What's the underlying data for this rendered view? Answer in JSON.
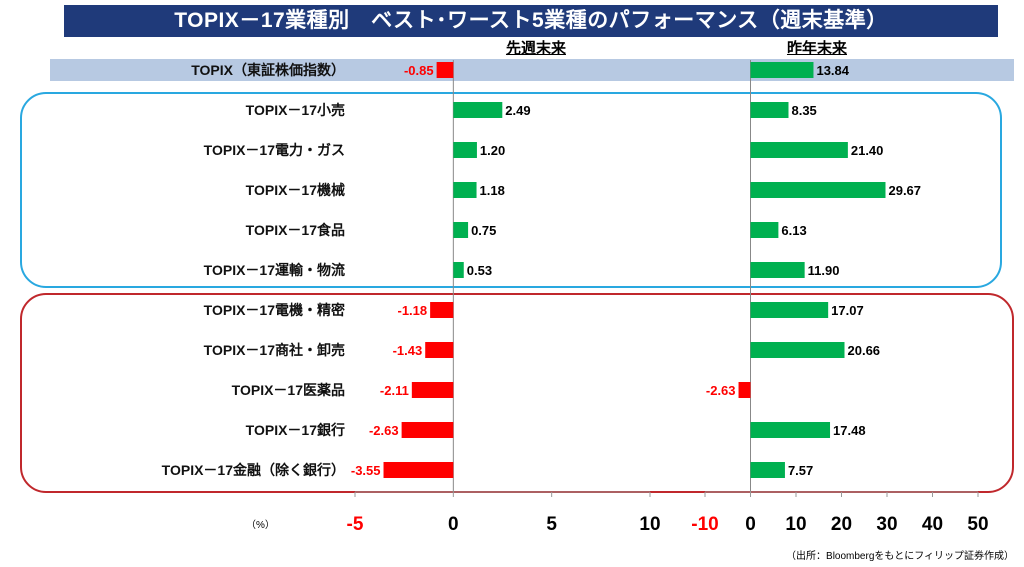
{
  "title": "TOPIX－17業種別　ベスト･ワースト5業種のパフォーマンス（週末基準）",
  "footer": {
    "unit": "（%）",
    "source": "（出所：Bloombergをもとにフィリップ証券作成）"
  },
  "colors": {
    "positive": "#00b050",
    "negative": "#ff0000",
    "title_bg": "#1f3a7a",
    "best_border": "#29a8e0",
    "worst_border": "#c0282c",
    "bench_bg": "#b7c9e2"
  },
  "chart_data": {
    "type": "bar",
    "orientation": "horizontal",
    "categories": [
      "TOPIX（東証株価指数）",
      "TOPIX－17小売",
      "TOPIX－17電力・ガス",
      "TOPIX－17機械",
      "TOPIX－17食品",
      "TOPIX－17運輸・物流",
      "TOPIX－17電機・精密",
      "TOPIX－17商社・卸売",
      "TOPIX－17医薬品",
      "TOPIX－17銀行",
      "TOPIX－17金融（除く銀行）"
    ],
    "groups": {
      "benchmark": [
        0
      ],
      "best5": [
        1,
        2,
        3,
        4,
        5
      ],
      "worst5": [
        6,
        7,
        8,
        9,
        10
      ]
    },
    "series": [
      {
        "name": "先週末来",
        "values": [
          -0.85,
          2.49,
          1.2,
          1.18,
          0.75,
          0.53,
          -1.18,
          -1.43,
          -2.11,
          -2.63,
          -3.55
        ],
        "labels": [
          "-0.85",
          "2.49",
          "1.20",
          "1.18",
          "0.75",
          "0.53",
          "-1.18",
          "-1.43",
          "-2.11",
          "-2.63",
          "-3.55"
        ],
        "xlim": [
          -5,
          10
        ],
        "ticks": [
          "-5",
          "0",
          "5",
          "10"
        ],
        "tick_values": [
          -5,
          0,
          5,
          10
        ]
      },
      {
        "name": "昨年末来",
        "values": [
          13.84,
          8.35,
          21.4,
          29.67,
          6.13,
          11.9,
          17.07,
          20.66,
          -2.63,
          17.48,
          7.57
        ],
        "labels": [
          "13.84",
          "8.35",
          "21.40",
          "29.67",
          "6.13",
          "11.90",
          "17.07",
          "20.66",
          "-2.63",
          "17.48",
          "7.57"
        ],
        "xlim": [
          -10,
          50
        ],
        "ticks": [
          "-10",
          "0",
          "10",
          "20",
          "30",
          "40",
          "50"
        ],
        "tick_values": [
          -10,
          0,
          10,
          20,
          30,
          40,
          50
        ]
      }
    ],
    "negative_tick_color": "#ff0000"
  }
}
